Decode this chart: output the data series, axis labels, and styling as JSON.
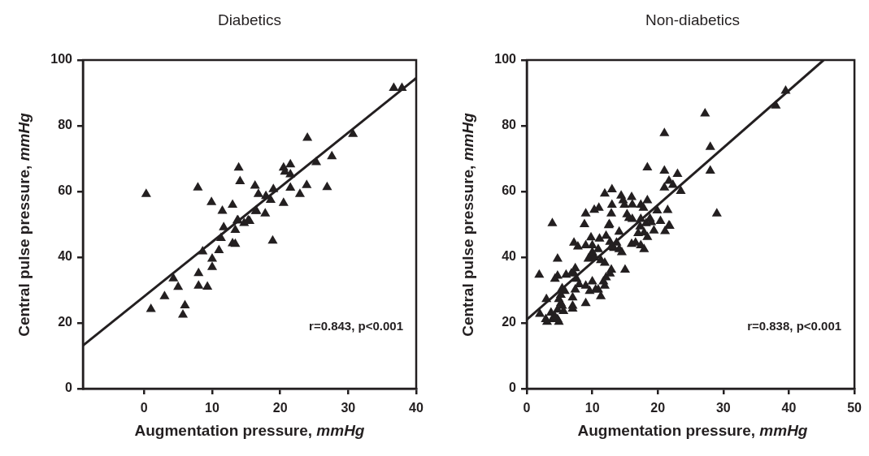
{
  "chart_data": [
    {
      "type": "scatter",
      "title": "Diabetics",
      "xlabel": "Augmentation pressure, mmHg",
      "ylabel": "Central pulse pressure, mmHg",
      "xlim": [
        -9,
        40
      ],
      "xticks": [
        0,
        10,
        20,
        30,
        40
      ],
      "ylim": [
        0,
        100
      ],
      "yticks": [
        0,
        20,
        40,
        60,
        80,
        100
      ],
      "grid": false,
      "legend": false,
      "marker": "triangle",
      "annotations": [
        "r=0.843, p<0.001"
      ],
      "series": [
        {
          "type": "scatter",
          "color": "#231f20",
          "x": [
            1.0,
            3.0,
            4.3,
            5.0,
            6.0,
            5.7,
            8.0,
            8.0,
            9.3,
            8.6,
            10.0,
            10.0,
            11.0,
            13.0,
            18.9,
            11.7,
            13.7,
            14.7,
            15.5,
            13.4,
            13.4,
            11.3,
            16.4,
            17.8,
            36.7,
            37.9,
            30.7,
            24.0,
            27.6,
            25.3,
            0.3,
            7.9,
            13.9,
            14.1,
            20.5,
            21.5,
            20.7,
            21.5,
            16.3,
            19.0,
            21.5,
            23.9,
            26.9,
            16.8,
            17.9,
            18.6,
            22.9,
            20.5,
            9.9,
            13.0,
            11.5,
            16.5,
            13.8,
            15.3
          ],
          "values": [
            24.2,
            28.1,
            33.5,
            30.9,
            25.3,
            22.5,
            35.1,
            31.3,
            31.0,
            41.7,
            39.5,
            37.0,
            42.1,
            44.2,
            45.0,
            49.1,
            51.2,
            50.4,
            51.0,
            48.3,
            44.0,
            45.8,
            54.0,
            53.3,
            91.5,
            91.5,
            77.5,
            76.3,
            70.7,
            68.9,
            59.2,
            61.2,
            67.2,
            63.1,
            67.2,
            68.2,
            66.0,
            65.2,
            61.7,
            60.7,
            61.1,
            61.9,
            61.3,
            59.2,
            58.6,
            57.4,
            59.2,
            56.5,
            56.7,
            55.9,
            54.1,
            54.1,
            51.2,
            51.2
          ]
        },
        {
          "type": "line",
          "color": "#231f20",
          "marker": "none",
          "line_style": "solid",
          "x": [
            -9,
            40
          ],
          "values": [
            13.1,
            94.5
          ]
        }
      ]
    },
    {
      "type": "scatter",
      "title": "Non-diabetics",
      "xlabel": "Augmentation pressure, mmHg",
      "ylabel": "Central pulse pressure, mmHg",
      "xlim": [
        0,
        50
      ],
      "xticks": [
        0,
        10,
        20,
        30,
        40,
        50
      ],
      "ylim": [
        0,
        100
      ],
      "yticks": [
        0,
        20,
        40,
        60,
        80,
        100
      ],
      "grid": false,
      "legend": false,
      "marker": "triangle",
      "annotations": [
        "r=0.838, p<0.001"
      ],
      "series": [
        {
          "type": "scatter",
          "color": "#231f20",
          "x": [
            39.5,
            38.0,
            27.2,
            21.0,
            28.0,
            28.0,
            18.4,
            21.0,
            23.0,
            21.7,
            21.0,
            22.3,
            23.5,
            29.0,
            13.0,
            11.9,
            14.4,
            16.0,
            18.4,
            14.7,
            17.4,
            14.9,
            16.1,
            13.0,
            11.0,
            10.3,
            9.0,
            12.9,
            17.8,
            19.9,
            21.5,
            16.1,
            17.4,
            18.8,
            20.4,
            3.9,
            8.8,
            12.6,
            18.2,
            21.7,
            15.3,
            15.6,
            17.3,
            19.0,
            21.8,
            21.1,
            19.4,
            18.4,
            17.9,
            17.0,
            16.0,
            17.4,
            17.9,
            16.6,
            14.1,
            12.5,
            12.1,
            11.1,
            9.8,
            9.0,
            7.8,
            7.2,
            10.0,
            10.9,
            12.7,
            13.7,
            14.1,
            13.3,
            14.5,
            12.9,
            9.8,
            9.4,
            10.4,
            11.3,
            11.9,
            10.0,
            4.7,
            15.0,
            12.9,
            12.7,
            12.1,
            11.7,
            11.9,
            11.3,
            10.9,
            10.0,
            10.5,
            9.6,
            9.0,
            8.0,
            7.6,
            7.4,
            7.0,
            7.0,
            7.0,
            9.0,
            7.4,
            7.1,
            6.8,
            6.0,
            4.7,
            1.9,
            4.3,
            5.4,
            5.8,
            5.2,
            4.9,
            5.2,
            5.4,
            4.7,
            5.6,
            3.0,
            2.0,
            2.9,
            3.7,
            3.9,
            4.7,
            4.9,
            3.1,
            4.3
          ],
          "values": [
            90.6,
            86.1,
            83.7,
            77.7,
            73.5,
            66.3,
            67.3,
            66.3,
            65.3,
            63.2,
            61.2,
            62.0,
            60.1,
            53.3,
            60.6,
            59.3,
            58.7,
            58.3,
            57.3,
            57.3,
            55.9,
            55.9,
            56.0,
            55.9,
            55.0,
            54.4,
            53.3,
            53.3,
            55.0,
            54.2,
            54.3,
            51.6,
            51.6,
            51.7,
            51.0,
            50.3,
            50.0,
            50.0,
            50.3,
            49.6,
            53.0,
            51.9,
            49.3,
            50.6,
            49.5,
            47.9,
            48.1,
            46.1,
            47.5,
            47.3,
            44.0,
            43.6,
            42.4,
            44.4,
            47.7,
            49.7,
            46.5,
            45.6,
            46.0,
            43.6,
            43.2,
            44.4,
            43.6,
            42.4,
            44.6,
            44.4,
            42.4,
            42.8,
            41.5,
            43.1,
            40.3,
            39.5,
            39.9,
            39.1,
            38.3,
            41.5,
            39.5,
            36.2,
            36.2,
            35.0,
            33.8,
            32.6,
            31.3,
            28.1,
            30.1,
            32.6,
            30.1,
            29.7,
            31.3,
            31.7,
            33.4,
            30.1,
            27.7,
            25.2,
            24.3,
            26.0,
            36.6,
            35.4,
            35.0,
            34.6,
            34.3,
            34.6,
            33.4,
            30.5,
            29.7,
            28.5,
            27.2,
            26.0,
            25.2,
            24.0,
            23.6,
            27.2,
            22.7,
            21.1,
            23.1,
            21.1,
            21.1,
            20.3,
            20.3,
            21.9
          ]
        },
        {
          "type": "line",
          "color": "#231f20",
          "marker": "none",
          "line_style": "solid",
          "x": [
            0,
            45.3
          ],
          "values": [
            21,
            100
          ]
        }
      ]
    }
  ]
}
